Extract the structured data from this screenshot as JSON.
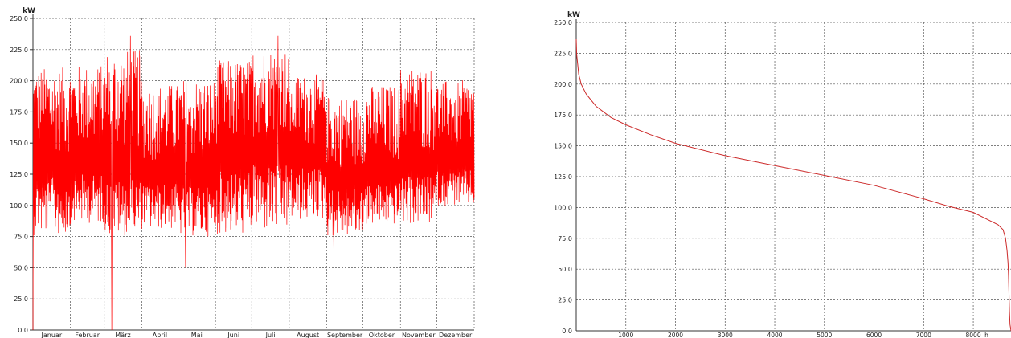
{
  "chart_data": [
    {
      "type": "line",
      "unit_label": "kW",
      "ylim": [
        0,
        250
      ],
      "y_ticks": [
        "0.0",
        "25.0",
        "50.0",
        "75.0",
        "100.0",
        "125.0",
        "150.0",
        "175.0",
        "200.0",
        "225.0",
        "250.0"
      ],
      "categories": [
        "Januar",
        "Februar",
        "März",
        "April",
        "Mai",
        "Juni",
        "Juli",
        "August",
        "September",
        "Oktober",
        "November",
        "Dezember"
      ],
      "grid": true,
      "colors": {
        "series": "#ff0000",
        "grid": "#555555"
      },
      "series": [
        {
          "baseline_by_month": [
            128,
            130,
            126,
            122,
            120,
            134,
            140,
            136,
            118,
            122,
            128,
            132
          ],
          "monthly_max": [
            220,
            222,
            236,
            206,
            211,
            226,
            236,
            213,
            196,
            205,
            221,
            208
          ],
          "monthly_min": [
            0,
            80,
            0,
            76,
            50,
            68,
            72,
            82,
            62,
            80,
            80,
            96
          ],
          "noted_values": [
            {
              "month": "März",
              "value": 236
            },
            {
              "month": "März",
              "value": 0
            },
            {
              "month": "Mai",
              "value": 50
            },
            {
              "month": "Juli",
              "value": 236
            },
            {
              "month": "September",
              "value": 62
            }
          ]
        }
      ]
    },
    {
      "type": "line",
      "unit_label": "kW",
      "x_unit_label": "h",
      "ylim": [
        0,
        250
      ],
      "xlim": [
        0,
        8760
      ],
      "y_ticks": [
        "0.0",
        "25.0",
        "50.0",
        "75.0",
        "100.0",
        "125.0",
        "150.0",
        "175.0",
        "200.0",
        "225.0",
        "250.0"
      ],
      "x_ticks": [
        "1000",
        "2000",
        "3000",
        "4000",
        "5000",
        "6000",
        "7000",
        "8000"
      ],
      "grid": true,
      "colors": {
        "series": "#cc2a2a",
        "grid": "#555555"
      },
      "series": [
        {
          "x": [
            0,
            10,
            50,
            100,
            200,
            400,
            700,
            1000,
            1500,
            2000,
            3000,
            4000,
            5000,
            6000,
            7000,
            7500,
            8000,
            8300,
            8500,
            8600,
            8650,
            8680,
            8700,
            8710,
            8720,
            8730,
            8740,
            8760
          ],
          "y": [
            237,
            224,
            208,
            200,
            192,
            182,
            173,
            167,
            159,
            152,
            142,
            134,
            126,
            118,
            107,
            101,
            96,
            90,
            86,
            82,
            75,
            65,
            55,
            45,
            30,
            15,
            5,
            0
          ]
        }
      ]
    }
  ]
}
